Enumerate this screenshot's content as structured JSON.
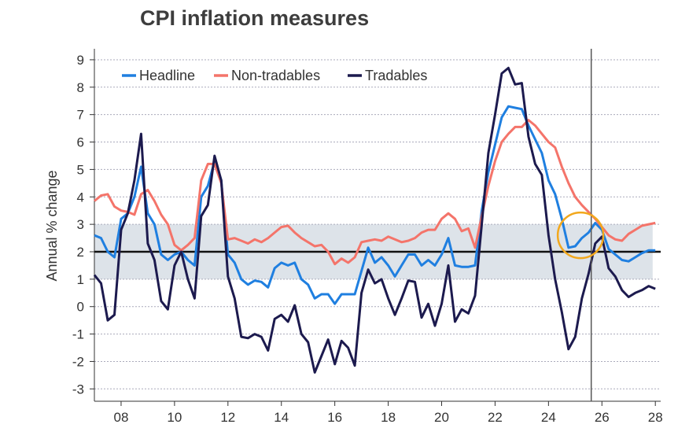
{
  "chart_data": {
    "type": "line",
    "title": "CPI inflation measures",
    "xlabel": "",
    "ylabel": "Annual % change",
    "xlim": [
      2007,
      2028.2
    ],
    "ylim": [
      -3.45,
      9.4
    ],
    "grid": true,
    "legend_position": "top-left",
    "x_ticks": [
      2008,
      2010,
      2012,
      2014,
      2016,
      2018,
      2020,
      2022,
      2024,
      2026,
      2028
    ],
    "x_tick_labels": [
      "08",
      "10",
      "12",
      "14",
      "16",
      "18",
      "20",
      "22",
      "24",
      "26",
      "28"
    ],
    "y_ticks": [
      -3,
      -2,
      -1,
      0,
      1,
      2,
      3,
      4,
      5,
      6,
      7,
      8,
      9
    ],
    "y_tick_labels": [
      "-3",
      "-2",
      "-1",
      "0",
      "1",
      "2",
      "3",
      "4",
      "5",
      "6",
      "7",
      "8",
      "9"
    ],
    "target_band": [
      1,
      3
    ],
    "target_line": 2,
    "forecast_start": 2025.6,
    "highlight_point": [
      2025.2,
      2.6
    ],
    "x": [
      2007,
      2007.25,
      2007.5,
      2007.75,
      2008,
      2008.25,
      2008.5,
      2008.75,
      2009,
      2009.25,
      2009.5,
      2009.75,
      2010,
      2010.25,
      2010.5,
      2010.75,
      2011,
      2011.25,
      2011.5,
      2011.75,
      2012,
      2012.25,
      2012.5,
      2012.75,
      2013,
      2013.25,
      2013.5,
      2013.75,
      2014,
      2014.25,
      2014.5,
      2014.75,
      2015,
      2015.25,
      2015.5,
      2015.75,
      2016,
      2016.25,
      2016.5,
      2016.75,
      2017,
      2017.25,
      2017.5,
      2017.75,
      2018,
      2018.25,
      2018.5,
      2018.75,
      2019,
      2019.25,
      2019.5,
      2019.75,
      2020,
      2020.25,
      2020.5,
      2020.75,
      2021,
      2021.25,
      2021.5,
      2021.75,
      2022,
      2022.25,
      2022.5,
      2022.75,
      2023,
      2023.25,
      2023.5,
      2023.75,
      2024,
      2024.25,
      2024.5,
      2024.75,
      2025,
      2025.25,
      2025.5,
      2025.75,
      2026,
      2026.25,
      2026.5,
      2026.75,
      2027,
      2027.25,
      2027.5,
      2027.75,
      2028
    ],
    "series": [
      {
        "name": "Headline",
        "color": "#1f7fe0",
        "values": [
          2.6,
          2.5,
          2.0,
          1.8,
          3.2,
          3.4,
          4.0,
          5.1,
          3.4,
          3.0,
          1.9,
          1.7,
          1.9,
          2.0,
          1.7,
          1.5,
          4.0,
          4.4,
          5.3,
          4.6,
          1.9,
          1.6,
          1.0,
          0.8,
          0.95,
          0.9,
          0.7,
          1.4,
          1.6,
          1.5,
          1.6,
          1.0,
          0.8,
          0.3,
          0.45,
          0.45,
          0.1,
          0.45,
          0.45,
          0.45,
          1.3,
          2.15,
          1.6,
          1.8,
          1.5,
          1.1,
          1.5,
          1.9,
          1.9,
          1.5,
          1.7,
          1.5,
          1.9,
          2.5,
          1.5,
          1.45,
          1.45,
          1.5,
          3.5,
          4.9,
          5.9,
          6.9,
          7.3,
          7.25,
          7.2,
          6.6,
          6.1,
          5.6,
          4.6,
          4.1,
          3.2,
          2.15,
          2.2,
          2.5,
          2.7,
          3.05,
          2.8,
          2.1,
          1.9,
          1.7,
          1.65,
          1.8,
          1.95,
          2.05,
          2.05
        ]
      },
      {
        "name": "Non-tradables",
        "color": "#f4746a",
        "values": [
          3.85,
          4.05,
          4.1,
          3.65,
          3.5,
          3.45,
          3.35,
          4.1,
          4.25,
          3.85,
          3.35,
          3.0,
          2.25,
          2.05,
          2.25,
          2.5,
          4.6,
          5.2,
          5.2,
          4.5,
          2.45,
          2.5,
          2.4,
          2.3,
          2.45,
          2.35,
          2.5,
          2.7,
          2.9,
          2.95,
          2.7,
          2.5,
          2.35,
          2.2,
          2.25,
          2.0,
          1.55,
          1.75,
          1.6,
          1.8,
          2.35,
          2.4,
          2.45,
          2.4,
          2.55,
          2.45,
          2.35,
          2.4,
          2.5,
          2.7,
          2.8,
          2.8,
          3.2,
          3.4,
          3.2,
          2.75,
          2.85,
          2.15,
          3.3,
          4.4,
          5.3,
          6.0,
          6.3,
          6.55,
          6.55,
          6.8,
          6.6,
          6.3,
          6.0,
          5.8,
          5.1,
          4.5,
          4.0,
          3.7,
          3.45,
          3.2,
          2.9,
          2.6,
          2.45,
          2.4,
          2.65,
          2.8,
          2.95,
          3.0,
          3.05
        ]
      },
      {
        "name": "Tradables",
        "color": "#1c1a4e",
        "values": [
          1.15,
          0.85,
          -0.5,
          -0.3,
          2.8,
          3.4,
          4.6,
          6.3,
          2.3,
          1.7,
          0.2,
          -0.1,
          1.5,
          2.0,
          1.0,
          0.3,
          3.3,
          3.7,
          5.5,
          4.6,
          1.1,
          0.3,
          -1.1,
          -1.15,
          -1.0,
          -1.1,
          -1.6,
          -0.45,
          -0.3,
          -0.55,
          0.05,
          -1.0,
          -1.3,
          -2.4,
          -1.8,
          -1.2,
          -2.1,
          -1.25,
          -1.5,
          -2.15,
          0.5,
          1.35,
          0.85,
          1.0,
          0.3,
          -0.3,
          0.3,
          0.95,
          0.9,
          -0.4,
          0.1,
          -0.7,
          0.1,
          1.5,
          -0.55,
          -0.1,
          -0.25,
          0.4,
          3.0,
          5.6,
          7.0,
          8.5,
          8.7,
          8.1,
          8.15,
          6.2,
          5.2,
          4.8,
          2.6,
          1.0,
          -0.2,
          -1.55,
          -1.1,
          0.3,
          1.2,
          2.3,
          2.55,
          1.4,
          1.1,
          0.6,
          0.35,
          0.5,
          0.6,
          0.75,
          0.65
        ]
      }
    ],
    "colors": {
      "target_band": "#dde3e9",
      "highlight": "#f2a81d",
      "forecast_line": "#555555",
      "target_line": "#111111"
    }
  }
}
